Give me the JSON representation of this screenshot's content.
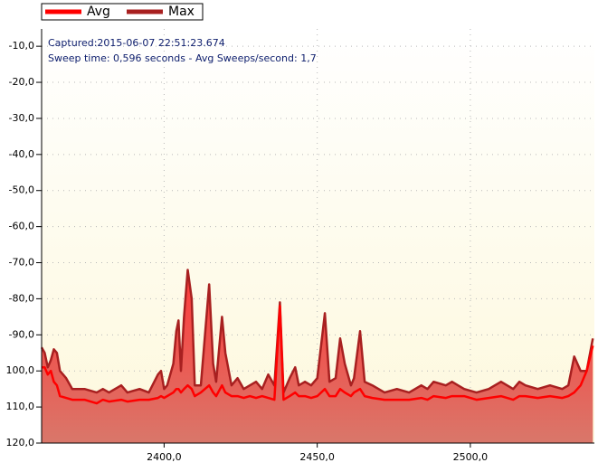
{
  "chart_data": {
    "type": "line",
    "legend": "top-left",
    "grid": true,
    "annotations": [
      "Captured:2015-06-07 22:51:23.674",
      "Sweep time: 0,596 seconds - Avg Sweeps/second: 1,7"
    ],
    "xlim": [
      2360,
      2540.5
    ],
    "xticks": [
      {
        "value": 2400,
        "label": "2400,0"
      },
      {
        "value": 2450,
        "label": "2450,0"
      },
      {
        "value": 2500,
        "label": "2500,0"
      }
    ],
    "ylim": [
      -120,
      -5.2
    ],
    "yticks": [
      {
        "value": -10,
        "label": "-10,0"
      },
      {
        "value": -20,
        "label": "-20,0"
      },
      {
        "value": -30,
        "label": "-30,0"
      },
      {
        "value": -40,
        "label": "-40,0"
      },
      {
        "value": -50,
        "label": "-50,0"
      },
      {
        "value": -60,
        "label": "-60,0"
      },
      {
        "value": -70,
        "label": "-70,0"
      },
      {
        "value": -80,
        "label": "-80,0"
      },
      {
        "value": -90,
        "label": "-90,0"
      },
      {
        "value": -100,
        "label": "100,0"
      },
      {
        "value": -110,
        "label": "110,0"
      },
      {
        "value": -120,
        "label": "120,0"
      }
    ],
    "x": [
      2360,
      2361,
      2362,
      2363,
      2364,
      2365,
      2366,
      2368,
      2370,
      2374,
      2378,
      2380,
      2382,
      2386,
      2388,
      2392,
      2395,
      2398,
      2399,
      2400,
      2401,
      2403,
      2404,
      2404.7,
      2405.5,
      2406.5,
      2407.7,
      2409,
      2410,
      2412,
      2414.7,
      2416,
      2417,
      2418.9,
      2420,
      2422,
      2424,
      2426,
      2428,
      2430,
      2432,
      2434,
      2436,
      2437.8,
      2439,
      2441,
      2442.8,
      2444,
      2446,
      2448,
      2450,
      2452.5,
      2454,
      2456,
      2457.5,
      2459,
      2461,
      2462,
      2464,
      2465.5,
      2468,
      2472,
      2476,
      2480,
      2484,
      2486,
      2488,
      2492,
      2494,
      2498,
      2502,
      2506,
      2510,
      2514,
      2516,
      2518,
      2522,
      2526,
      2530,
      2532,
      2533.9,
      2536,
      2538,
      2540
    ],
    "series": [
      {
        "name": "Avg",
        "color": "#ff0000",
        "values": [
          -99,
          -99,
          -101,
          -100,
          -103,
          -104,
          -107,
          -107.5,
          -108,
          -108,
          -109,
          -108,
          -108.5,
          -108,
          -108.5,
          -108,
          -108,
          -107.5,
          -107,
          -107.5,
          -107,
          -106,
          -105,
          -105,
          -106,
          -105,
          -104,
          -105,
          -107,
          -106,
          -104,
          -106,
          -107,
          -104,
          -106,
          -107,
          -107,
          -107.5,
          -107,
          -107.5,
          -107,
          -107.5,
          -108,
          -82,
          -108,
          -107,
          -106,
          -107,
          -107,
          -107.5,
          -107,
          -105,
          -107,
          -107,
          -105,
          -106,
          -107,
          -106,
          -105,
          -107,
          -107.5,
          -108,
          -108,
          -108,
          -107.5,
          -108,
          -107,
          -107.5,
          -107,
          -107,
          -108,
          -107.5,
          -107,
          -108,
          -107,
          -107,
          -107.5,
          -107,
          -107.5,
          -107,
          -106,
          -104,
          -100,
          -93
        ]
      },
      {
        "name": "Max",
        "color": "#a82020",
        "values": [
          -93.5,
          -95,
          -99,
          -97,
          -94,
          -95,
          -100,
          -102,
          -105,
          -105,
          -106,
          -105,
          -106,
          -104,
          -106,
          -105,
          -106,
          -101,
          -100,
          -105,
          -104,
          -98,
          -89,
          -86,
          -100,
          -85,
          -72,
          -80,
          -104,
          -104,
          -76,
          -98,
          -103,
          -85,
          -95,
          -104,
          -102,
          -105,
          -104,
          -103,
          -105,
          -101,
          -104,
          -81,
          -106,
          -102,
          -99,
          -104,
          -103,
          -104,
          -102,
          -84,
          -103,
          -102,
          -91,
          -98,
          -104,
          -102,
          -89,
          -103,
          -104,
          -106,
          -105,
          -106,
          -104,
          -105,
          -103,
          -104,
          -103,
          -105,
          -106,
          -105,
          -103,
          -105,
          -103,
          -104,
          -105,
          -104,
          -105,
          -104,
          -96,
          -100,
          -100,
          -91
        ]
      }
    ]
  }
}
